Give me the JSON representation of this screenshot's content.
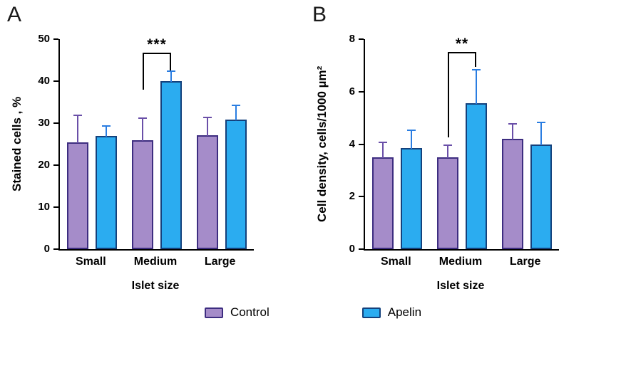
{
  "chart_data": [
    {
      "type": "bar",
      "panel_label": "A",
      "title": "",
      "xlabel": "Islet size",
      "ylabel": "Stained cells , %",
      "ylim": [
        0,
        50
      ],
      "yticks": [
        0,
        10,
        20,
        30,
        40,
        50
      ],
      "categories": [
        "Small",
        "Medium",
        "Large"
      ],
      "series": [
        {
          "name": "Control",
          "values": [
            25.5,
            26.0,
            27.2
          ],
          "errors": [
            6.5,
            5.4,
            4.4
          ]
        },
        {
          "name": "Apelin",
          "values": [
            27.0,
            40.0,
            30.8
          ],
          "errors": [
            2.5,
            2.5,
            3.6
          ]
        }
      ],
      "significance": {
        "category_index": 1,
        "label": "***",
        "bracket_top": 46.5,
        "left_drop_to": 38.0,
        "right_drop_to": 42.6
      }
    },
    {
      "type": "bar",
      "panel_label": "B",
      "title": "",
      "xlabel": "Islet size",
      "ylabel": "Cell density, cells/1000 µm²",
      "ylim": [
        0,
        8
      ],
      "yticks": [
        0,
        2,
        4,
        6,
        8
      ],
      "categories": [
        "Small",
        "Medium",
        "Large"
      ],
      "series": [
        {
          "name": "Control",
          "values": [
            3.5,
            3.5,
            4.2
          ],
          "errors": [
            0.6,
            0.5,
            0.6
          ]
        },
        {
          "name": "Apelin",
          "values": [
            3.85,
            5.55,
            4.0
          ],
          "errors": [
            0.7,
            1.3,
            0.85
          ]
        }
      ],
      "significance": {
        "category_index": 1,
        "label": "**",
        "bracket_top": 7.45,
        "left_drop_to": 4.25,
        "right_drop_to": 6.95
      }
    }
  ],
  "legend": {
    "items": [
      {
        "label": "Control",
        "fill": "#a58cc9",
        "border": "#3d2d80"
      },
      {
        "label": "Apelin",
        "fill": "#2bacf0",
        "border": "#14417c"
      }
    ]
  },
  "colors": {
    "control_fill": "#a58cc9",
    "control_border": "#3d2d80",
    "control_error": "#6a4fa8",
    "apelin_fill": "#2bacf0",
    "apelin_border": "#14417c",
    "apelin_error": "#2a7de1",
    "axis": "#000000"
  }
}
